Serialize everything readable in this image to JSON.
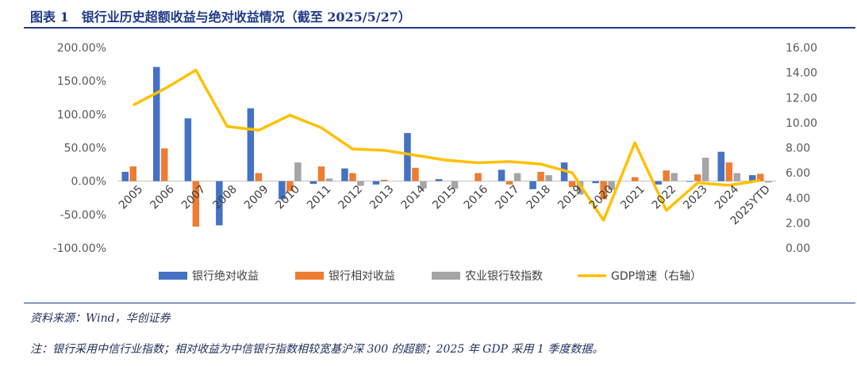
{
  "title": "图表 1　银行业历史超额收益与绝对收益情况（截至 2025/5/27）",
  "source": "资料来源：Wind，华创证券",
  "note": "注：银行采用中信行业指数；相对收益为中信银行指数相较宽基沪深 300 的超额；2025 年 GDP 采用 1 季度数据。",
  "colors": {
    "title": "#1f3a8a",
    "blue": "#4472c4",
    "orange": "#ed7d31",
    "gray": "#a5a5a5",
    "gold": "#ffc000"
  },
  "chart_data": {
    "type": "bar",
    "categories": [
      "2005",
      "2006",
      "2007",
      "2008",
      "2009",
      "2010",
      "2011",
      "2012",
      "2013",
      "2014",
      "2015",
      "2016",
      "2017",
      "2018",
      "2019",
      "2020",
      "2021",
      "2022",
      "2023",
      "2024",
      "2025YTD"
    ],
    "left_axis": {
      "ticks": [
        "-100.00%",
        "-50.00%",
        "0.00%",
        "50.00%",
        "100.00%",
        "150.00%",
        "200.00%"
      ],
      "range": [
        -1.0,
        2.0
      ]
    },
    "right_axis": {
      "ticks": [
        "0.00",
        "2.00",
        "4.00",
        "6.00",
        "8.00",
        "10.00",
        "12.00",
        "14.00",
        "16.00"
      ],
      "range": [
        0,
        16
      ]
    },
    "series": [
      {
        "name": "银行绝对收益",
        "type": "bar",
        "axis": "left",
        "color": "#4472c4",
        "values": [
          0.14,
          1.71,
          0.94,
          -0.66,
          1.09,
          -0.27,
          -0.04,
          0.19,
          -0.05,
          0.72,
          0.03,
          0.0,
          0.17,
          -0.12,
          0.28,
          -0.03,
          0.0,
          -0.05,
          -0.01,
          0.44,
          0.09
        ]
      },
      {
        "name": "银行相对收益",
        "type": "bar",
        "axis": "left",
        "color": "#ed7d31",
        "values": [
          0.22,
          0.49,
          -0.68,
          0.0,
          0.12,
          -0.15,
          0.22,
          0.12,
          0.02,
          0.2,
          0.0,
          0.12,
          -0.05,
          0.14,
          -0.09,
          -0.27,
          0.06,
          0.16,
          0.1,
          0.28,
          0.11
        ]
      },
      {
        "name": "农业银行较指数",
        "type": "bar",
        "axis": "left",
        "color": "#a5a5a5",
        "values": [
          0.0,
          0.0,
          0.0,
          0.0,
          0.0,
          0.28,
          0.04,
          -0.07,
          0.0,
          -0.11,
          -0.11,
          0.0,
          0.12,
          0.09,
          -0.2,
          -0.13,
          0.0,
          0.12,
          0.35,
          0.12,
          -0.02
        ]
      },
      {
        "name": "GDP增速（右轴）",
        "type": "line",
        "axis": "right",
        "color": "#ffc000",
        "values": [
          11.4,
          12.7,
          14.2,
          9.7,
          9.4,
          10.6,
          9.6,
          7.9,
          7.8,
          7.4,
          7.0,
          6.8,
          6.9,
          6.7,
          6.0,
          2.2,
          8.4,
          3.0,
          5.2,
          5.0,
          5.4
        ]
      }
    ],
    "legend_position": "bottom",
    "grid": false
  }
}
